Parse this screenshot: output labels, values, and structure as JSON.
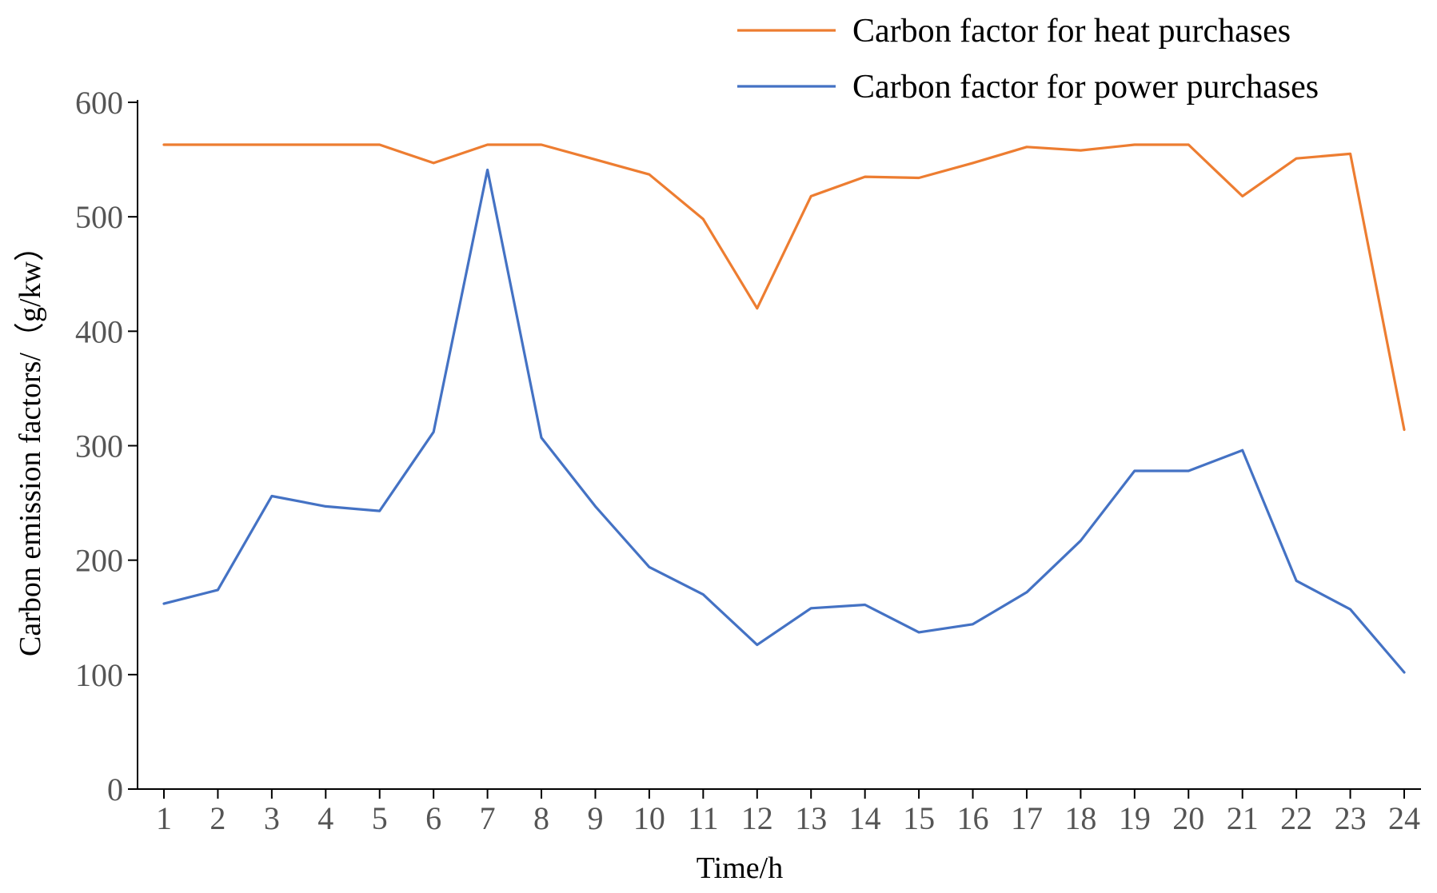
{
  "chart_data": {
    "type": "line",
    "title": "",
    "xlabel": "Time/h",
    "ylabel": "Carbon emission factors/（g/kw）",
    "x": [
      1,
      2,
      3,
      4,
      5,
      6,
      7,
      8,
      9,
      10,
      11,
      12,
      13,
      14,
      15,
      16,
      17,
      18,
      19,
      20,
      21,
      22,
      23,
      24
    ],
    "xticks": [
      "1",
      "2",
      "3",
      "4",
      "5",
      "6",
      "7",
      "8",
      "9",
      "10",
      "11",
      "12",
      "13",
      "14",
      "15",
      "16",
      "17",
      "18",
      "19",
      "20",
      "21",
      "22",
      "23",
      "24"
    ],
    "ylim": [
      0,
      600
    ],
    "yticks": [
      "0",
      "100",
      "200",
      "300",
      "400",
      "500",
      "600"
    ],
    "grid": false,
    "legend_position": "top-right",
    "series": [
      {
        "name": "Carbon factor for heat purchases",
        "color": "#ED7D31",
        "values": [
          563,
          563,
          563,
          563,
          563,
          547,
          563,
          563,
          550,
          537,
          498,
          420,
          518,
          535,
          534,
          547,
          561,
          558,
          563,
          563,
          518,
          551,
          555,
          314
        ]
      },
      {
        "name": "Carbon factor for power purchases",
        "color": "#4472C4",
        "values": [
          162,
          174,
          256,
          247,
          243,
          312,
          541,
          307,
          247,
          194,
          170,
          126,
          158,
          161,
          137,
          144,
          172,
          217,
          278,
          278,
          296,
          182,
          157,
          102
        ]
      }
    ]
  }
}
